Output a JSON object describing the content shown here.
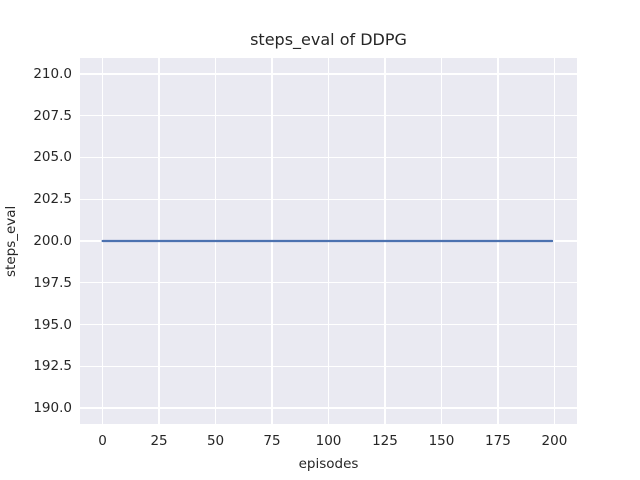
{
  "chart_data": {
    "type": "line",
    "title": "steps_eval of DDPG",
    "xlabel": "episodes",
    "ylabel": "steps_eval",
    "xticks": [
      "0",
      "25",
      "50",
      "75",
      "100",
      "125",
      "150",
      "175",
      "200"
    ],
    "yticks": [
      "210.0",
      "207.5",
      "205.0",
      "202.5",
      "200.0",
      "197.5",
      "195.0",
      "192.5",
      "190.0"
    ],
    "xlim": [
      -10,
      210
    ],
    "ylim": [
      189.05,
      210.95
    ],
    "grid": true,
    "legend": false,
    "plot_bg_color": "#EAEAF2",
    "grid_color": "#FFFFFF",
    "text_color": "#262626",
    "figure_bg_color": "#FFFFFF",
    "series": [
      {
        "name": "steps_eval",
        "color": "#4C72B0",
        "line_width": 2.2,
        "x": [
          0,
          199
        ],
        "y": [
          200.0,
          200.0
        ]
      }
    ]
  }
}
